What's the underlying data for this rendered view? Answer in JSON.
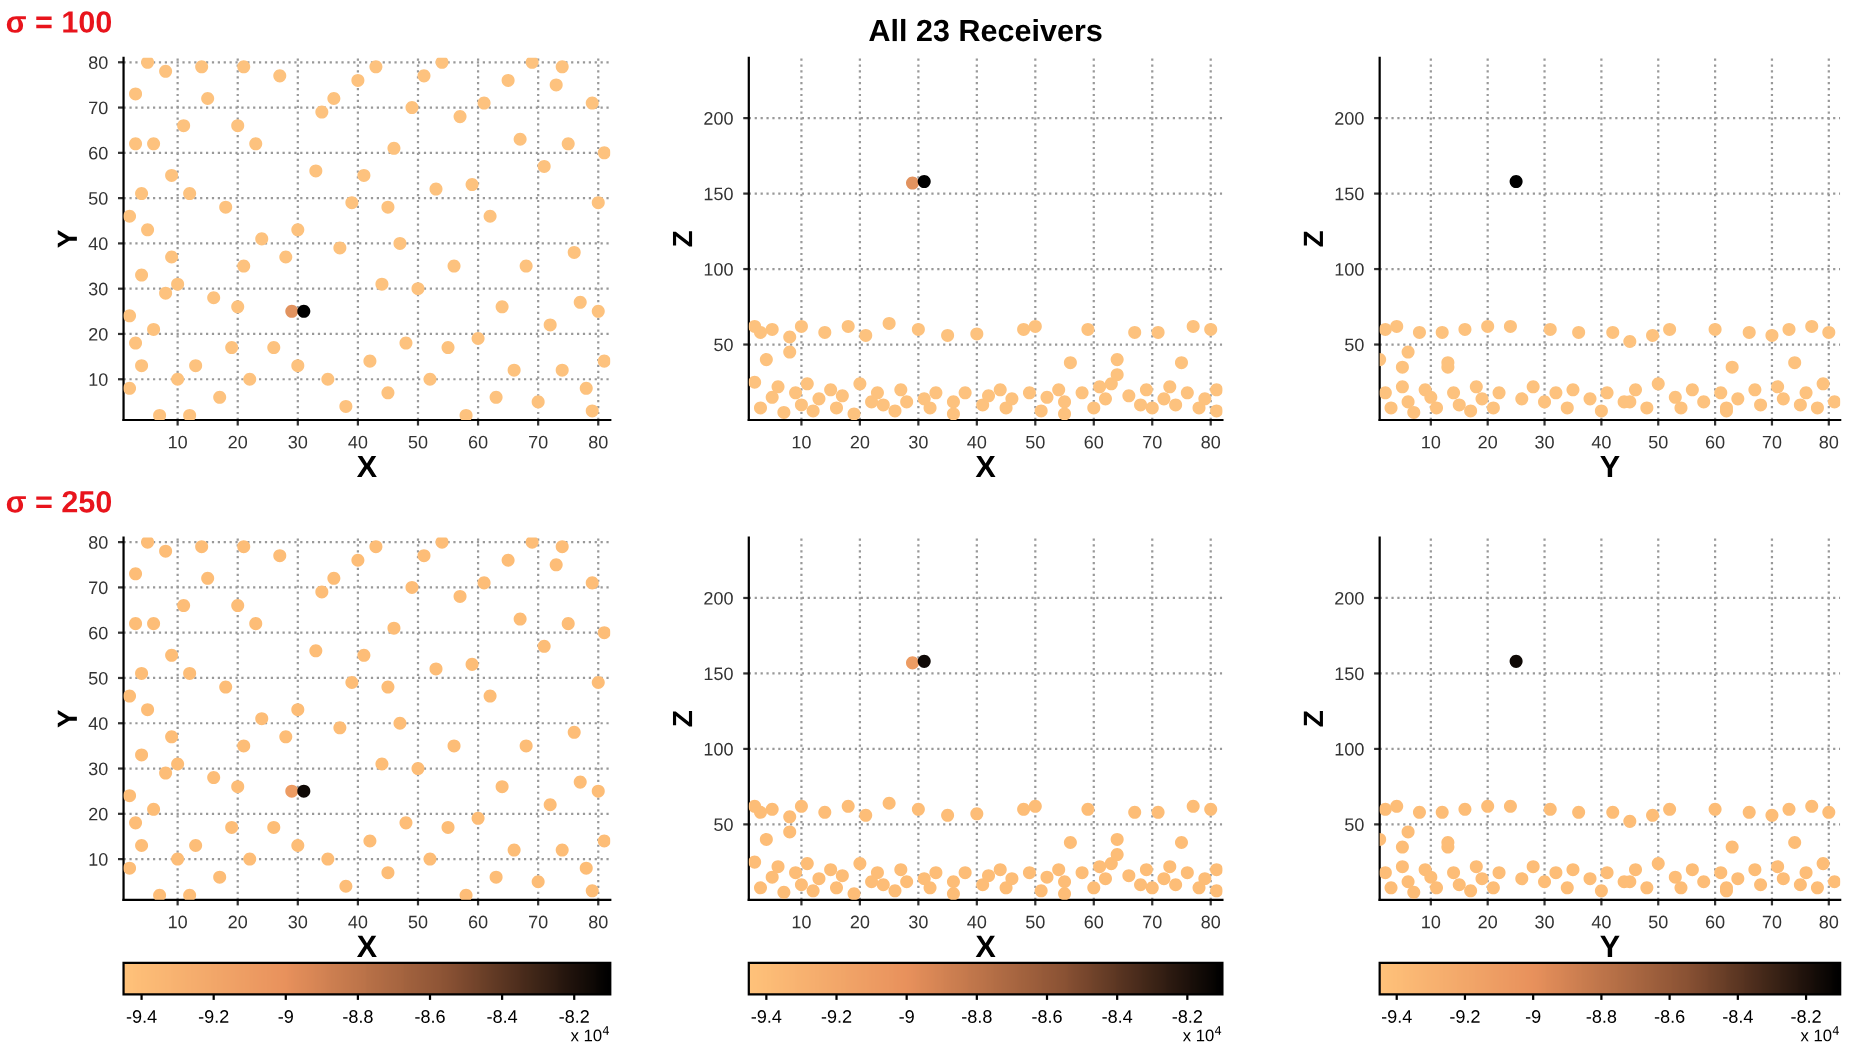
{
  "chart_data": [
    {
      "type": "scatter",
      "subtitle": "σ = 100",
      "xlabel": "X",
      "ylabel": "Y",
      "xlim": [
        1,
        82
      ],
      "ylim": [
        1,
        81
      ],
      "xticks": [
        10,
        20,
        30,
        40,
        50,
        60,
        70,
        80
      ],
      "yticks": [
        10,
        20,
        30,
        40,
        50,
        60,
        70,
        80
      ],
      "grid": true,
      "marker": "circle",
      "series": [
        {
          "color": "#fdc27e",
          "x": [
            2,
            2,
            2,
            3,
            3,
            3,
            4,
            4,
            4,
            5,
            5,
            6,
            6,
            7,
            8,
            8,
            9,
            9,
            10,
            10,
            11,
            12,
            12,
            13,
            14,
            15,
            16,
            17,
            18,
            19,
            20,
            20,
            21,
            21,
            22,
            23,
            24,
            26,
            27,
            28,
            30,
            30,
            33,
            34,
            35,
            36,
            37,
            38,
            39,
            40,
            41,
            42,
            43,
            44,
            45,
            45,
            46,
            47,
            48,
            49,
            50,
            51,
            52,
            53,
            54,
            55,
            56,
            57,
            58,
            59,
            60,
            61,
            62,
            63,
            64,
            65,
            66,
            67,
            68,
            69,
            70,
            71,
            72,
            73,
            74,
            75,
            76,
            77,
            78,
            79,
            80,
            80,
            81,
            81,
            79,
            74
          ],
          "values": [
            46,
            24,
            8,
            73,
            62,
            18,
            51,
            33,
            13,
            80,
            43,
            62,
            21,
            2,
            78,
            29,
            37,
            55,
            10,
            31,
            66,
            51,
            2,
            13,
            79,
            72,
            28,
            6,
            48,
            17,
            66,
            26,
            79,
            35,
            10,
            62,
            41,
            17,
            77,
            37,
            43,
            13,
            56,
            69,
            10,
            72,
            39,
            4,
            49,
            76,
            55,
            14,
            79,
            31,
            48,
            7,
            61,
            40,
            18,
            70,
            30,
            77,
            10,
            52,
            80,
            17,
            35,
            68,
            2,
            53,
            19,
            71,
            46,
            6,
            26,
            76,
            12,
            63,
            35,
            80,
            5,
            57,
            22,
            75,
            12,
            62,
            38,
            27,
            8,
            71,
            49,
            25,
            14,
            60,
            3,
            79
          ]
        },
        {
          "color": "#e2935f",
          "x": [
            29
          ],
          "values": [
            25
          ]
        },
        {
          "color": "#000000",
          "x": [
            31
          ],
          "values": [
            25
          ]
        }
      ]
    },
    {
      "type": "scatter",
      "title": "All 23 Receivers",
      "xlabel": "X",
      "ylabel": "Z",
      "xlim": [
        1,
        82
      ],
      "ylim": [
        0,
        240
      ],
      "xticks": [
        10,
        20,
        30,
        40,
        50,
        60,
        70,
        80
      ],
      "yticks": [
        50,
        100,
        150,
        200
      ],
      "grid": true,
      "marker": "circle",
      "series": [
        {
          "color": "#fdc27e",
          "x": [
            2,
            2,
            3,
            3,
            4,
            5,
            5,
            6,
            7,
            8,
            9,
            10,
            10,
            11,
            12,
            13,
            14,
            15,
            16,
            17,
            18,
            19,
            20,
            21,
            22,
            23,
            24,
            25,
            26,
            27,
            28,
            30,
            31,
            32,
            33,
            35,
            36,
            38,
            40,
            41,
            42,
            44,
            45,
            46,
            48,
            49,
            50,
            51,
            52,
            54,
            55,
            56,
            58,
            59,
            60,
            61,
            62,
            63,
            64,
            66,
            67,
            68,
            69,
            70,
            71,
            72,
            73,
            74,
            75,
            76,
            77,
            78,
            79,
            80,
            81,
            81,
            8,
            36,
            55,
            64
          ],
          "values": [
            62,
            25,
            8,
            58,
            40,
            15,
            60,
            22,
            5,
            55,
            18,
            10,
            62,
            24,
            6,
            14,
            58,
            20,
            8,
            16,
            62,
            4,
            24,
            56,
            12,
            18,
            10,
            64,
            6,
            20,
            12,
            60,
            14,
            8,
            18,
            56,
            12,
            18,
            57,
            10,
            16,
            20,
            8,
            14,
            60,
            18,
            62,
            6,
            15,
            20,
            12,
            38,
            18,
            60,
            8,
            22,
            14,
            24,
            40,
            16,
            58,
            10,
            20,
            8,
            58,
            14,
            22,
            10,
            38,
            18,
            62,
            8,
            14,
            60,
            6,
            20,
            45,
            4,
            4,
            30
          ]
        },
        {
          "color": "#e2935f",
          "x": [
            29
          ],
          "values": [
            157
          ]
        },
        {
          "color": "#000000",
          "x": [
            31
          ],
          "values": [
            158
          ]
        }
      ]
    },
    {
      "type": "scatter",
      "xlabel": "Y",
      "ylabel": "Z",
      "xlim": [
        1,
        82
      ],
      "ylim": [
        0,
        240
      ],
      "xticks": [
        10,
        20,
        30,
        40,
        50,
        60,
        70,
        80
      ],
      "yticks": [
        50,
        100,
        150,
        200
      ],
      "grid": true,
      "marker": "circle",
      "series": [
        {
          "color": "#fdc27e",
          "x": [
            1,
            2,
            2,
            3,
            4,
            5,
            6,
            6,
            7,
            8,
            9,
            10,
            11,
            12,
            13,
            14,
            15,
            16,
            17,
            18,
            19,
            20,
            21,
            22,
            24,
            26,
            28,
            30,
            31,
            32,
            34,
            35,
            36,
            38,
            40,
            41,
            42,
            44,
            45,
            46,
            48,
            49,
            50,
            52,
            53,
            54,
            56,
            58,
            60,
            61,
            62,
            63,
            64,
            66,
            67,
            68,
            70,
            71,
            72,
            73,
            74,
            75,
            76,
            77,
            78,
            79,
            80,
            81,
            5,
            13,
            45,
            62
          ],
          "values": [
            40,
            60,
            18,
            8,
            62,
            22,
            45,
            12,
            5,
            58,
            20,
            15,
            8,
            58,
            35,
            18,
            10,
            60,
            6,
            22,
            14,
            62,
            8,
            18,
            62,
            14,
            22,
            12,
            60,
            18,
            8,
            20,
            58,
            14,
            6,
            18,
            58,
            12,
            52,
            20,
            8,
            56,
            24,
            60,
            15,
            8,
            20,
            12,
            60,
            18,
            8,
            35,
            14,
            58,
            20,
            10,
            56,
            22,
            14,
            60,
            38,
            10,
            18,
            62,
            8,
            24,
            58,
            12,
            35,
            38,
            12,
            6
          ]
        },
        {
          "color": "#000000",
          "x": [
            25
          ],
          "values": [
            158
          ]
        }
      ]
    },
    {
      "type": "scatter",
      "subtitle": "σ = 250",
      "xlabel": "X",
      "ylabel": "Y",
      "xlim": [
        1,
        82
      ],
      "ylim": [
        1,
        81
      ],
      "xticks": [
        10,
        20,
        30,
        40,
        50,
        60,
        70,
        80
      ],
      "yticks": [
        10,
        20,
        30,
        40,
        50,
        60,
        70,
        80
      ],
      "grid": true,
      "marker": "circle",
      "clim": [
        -9.45,
        -8.1
      ],
      "cticks": [
        -9.4,
        -9.2,
        -9,
        -8.8,
        -8.6,
        -8.4,
        -8.2
      ],
      "annotations": [
        "x 10$^{4}$"
      ],
      "series": [
        {
          "x": [
            2,
            2,
            2,
            3,
            3,
            3,
            4,
            4,
            4,
            5,
            5,
            6,
            6,
            7,
            8,
            8,
            9,
            9,
            10,
            10,
            11,
            12,
            12,
            13,
            14,
            15,
            16,
            17,
            18,
            19,
            20,
            20,
            21,
            21,
            22,
            23,
            24,
            26,
            27,
            28,
            30,
            30,
            33,
            34,
            35,
            36,
            37,
            38,
            39,
            40,
            41,
            42,
            43,
            44,
            45,
            45,
            46,
            47,
            48,
            49,
            50,
            51,
            52,
            53,
            54,
            55,
            56,
            57,
            58,
            59,
            60,
            61,
            62,
            63,
            64,
            65,
            66,
            67,
            68,
            69,
            70,
            71,
            72,
            73,
            74,
            75,
            76,
            77,
            78,
            79,
            80,
            80,
            81,
            81,
            79,
            74,
            29,
            31
          ],
          "values": [
            46,
            24,
            8,
            73,
            62,
            18,
            51,
            33,
            13,
            80,
            43,
            62,
            21,
            2,
            78,
            29,
            37,
            55,
            10,
            31,
            66,
            51,
            2,
            13,
            79,
            72,
            28,
            6,
            48,
            17,
            66,
            26,
            79,
            35,
            10,
            62,
            41,
            17,
            77,
            37,
            43,
            13,
            56,
            69,
            10,
            72,
            39,
            4,
            49,
            76,
            55,
            14,
            79,
            31,
            48,
            7,
            61,
            40,
            18,
            70,
            30,
            77,
            10,
            52,
            80,
            17,
            35,
            68,
            2,
            53,
            19,
            71,
            46,
            6,
            26,
            76,
            12,
            63,
            35,
            80,
            5,
            57,
            22,
            75,
            12,
            62,
            38,
            27,
            8,
            71,
            49,
            25,
            14,
            60,
            3,
            79,
            25,
            25
          ],
          "cvalues": [
            -9.4,
            -9.4,
            -9.4,
            -9.4,
            -9.4,
            -9.4,
            -9.4,
            -9.4,
            -9.4,
            -9.4,
            -9.4,
            -9.4,
            -9.4,
            -9.4,
            -9.4,
            -9.4,
            -9.4,
            -9.4,
            -9.4,
            -9.4,
            -9.4,
            -9.4,
            -9.4,
            -9.4,
            -9.4,
            -9.4,
            -9.4,
            -9.4,
            -9.4,
            -9.4,
            -9.4,
            -9.4,
            -9.4,
            -9.4,
            -9.4,
            -9.4,
            -9.4,
            -9.4,
            -9.4,
            -9.4,
            -9.4,
            -9.4,
            -9.4,
            -9.4,
            -9.4,
            -9.4,
            -9.4,
            -9.4,
            -9.4,
            -9.4,
            -9.4,
            -9.4,
            -9.4,
            -9.4,
            -9.4,
            -9.4,
            -9.4,
            -9.4,
            -9.4,
            -9.4,
            -9.4,
            -9.4,
            -9.4,
            -9.4,
            -9.4,
            -9.4,
            -9.4,
            -9.4,
            -9.4,
            -9.4,
            -9.4,
            -9.4,
            -9.4,
            -9.4,
            -9.4,
            -9.4,
            -9.4,
            -9.4,
            -9.4,
            -9.4,
            -9.4,
            -9.4,
            -9.4,
            -9.4,
            -9.4,
            -9.4,
            -9.4,
            -9.4,
            -9.4,
            -9.4,
            -9.4,
            -9.4,
            -9.4,
            -9.4,
            -9.4,
            -9.4,
            -9.1,
            -8.15
          ]
        }
      ]
    },
    {
      "type": "scatter",
      "xlabel": "X",
      "ylabel": "Z",
      "xlim": [
        1,
        82
      ],
      "ylim": [
        0,
        240
      ],
      "xticks": [
        10,
        20,
        30,
        40,
        50,
        60,
        70,
        80
      ],
      "yticks": [
        50,
        100,
        150,
        200
      ],
      "grid": true,
      "marker": "circle",
      "clim": [
        -9.45,
        -8.1
      ],
      "cticks": [
        -9.4,
        -9.2,
        -9,
        -8.8,
        -8.6,
        -8.4,
        -8.2
      ],
      "annotations": [
        "x 10$^{4}$"
      ],
      "series": [
        {
          "x": [
            2,
            2,
            3,
            3,
            4,
            5,
            5,
            6,
            7,
            8,
            9,
            10,
            10,
            11,
            12,
            13,
            14,
            15,
            16,
            17,
            18,
            19,
            20,
            21,
            22,
            23,
            24,
            25,
            26,
            27,
            28,
            30,
            31,
            32,
            33,
            35,
            36,
            38,
            40,
            41,
            42,
            44,
            45,
            46,
            48,
            49,
            50,
            51,
            52,
            54,
            55,
            56,
            58,
            59,
            60,
            61,
            62,
            63,
            64,
            66,
            67,
            68,
            69,
            70,
            71,
            72,
            73,
            74,
            75,
            76,
            77,
            78,
            79,
            80,
            81,
            81,
            8,
            36,
            55,
            64,
            29,
            31
          ],
          "values": [
            62,
            25,
            8,
            58,
            40,
            15,
            60,
            22,
            5,
            55,
            18,
            10,
            62,
            24,
            6,
            14,
            58,
            20,
            8,
            16,
            62,
            4,
            24,
            56,
            12,
            18,
            10,
            64,
            6,
            20,
            12,
            60,
            14,
            8,
            18,
            56,
            12,
            18,
            57,
            10,
            16,
            20,
            8,
            14,
            60,
            18,
            62,
            6,
            15,
            20,
            12,
            38,
            18,
            60,
            8,
            22,
            14,
            24,
            40,
            16,
            58,
            10,
            20,
            8,
            58,
            14,
            22,
            10,
            38,
            18,
            62,
            8,
            14,
            60,
            6,
            20,
            45,
            4,
            4,
            30,
            157,
            158
          ],
          "cvalues": [
            -9.4,
            -9.4,
            -9.4,
            -9.4,
            -9.4,
            -9.4,
            -9.4,
            -9.4,
            -9.4,
            -9.4,
            -9.4,
            -9.4,
            -9.4,
            -9.4,
            -9.4,
            -9.4,
            -9.4,
            -9.4,
            -9.4,
            -9.4,
            -9.4,
            -9.4,
            -9.4,
            -9.4,
            -9.4,
            -9.4,
            -9.4,
            -9.4,
            -9.4,
            -9.4,
            -9.4,
            -9.4,
            -9.4,
            -9.4,
            -9.4,
            -9.4,
            -9.4,
            -9.4,
            -9.4,
            -9.4,
            -9.4,
            -9.4,
            -9.4,
            -9.4,
            -9.4,
            -9.4,
            -9.4,
            -9.4,
            -9.4,
            -9.4,
            -9.4,
            -9.4,
            -9.4,
            -9.4,
            -9.4,
            -9.4,
            -9.4,
            -9.4,
            -9.4,
            -9.4,
            -9.4,
            -9.4,
            -9.4,
            -9.4,
            -9.4,
            -9.4,
            -9.4,
            -9.4,
            -9.4,
            -9.4,
            -9.4,
            -9.4,
            -9.4,
            -9.4,
            -9.4,
            -9.4,
            -9.4,
            -9.4,
            -9.4,
            -9.4,
            -9.1,
            -8.15
          ]
        }
      ]
    },
    {
      "type": "scatter",
      "xlabel": "Y",
      "ylabel": "Z",
      "xlim": [
        1,
        82
      ],
      "ylim": [
        0,
        240
      ],
      "xticks": [
        10,
        20,
        30,
        40,
        50,
        60,
        70,
        80
      ],
      "yticks": [
        50,
        100,
        150,
        200
      ],
      "grid": true,
      "marker": "circle",
      "clim": [
        -9.45,
        -8.1
      ],
      "cticks": [
        -9.4,
        -9.2,
        -9,
        -8.8,
        -8.6,
        -8.4,
        -8.2
      ],
      "annotations": [
        "x 10$^{4}$"
      ],
      "series": [
        {
          "x": [
            1,
            2,
            2,
            3,
            4,
            5,
            6,
            6,
            7,
            8,
            9,
            10,
            11,
            12,
            13,
            14,
            15,
            16,
            17,
            18,
            19,
            20,
            21,
            22,
            24,
            26,
            28,
            30,
            31,
            32,
            34,
            35,
            36,
            38,
            40,
            41,
            42,
            44,
            45,
            46,
            48,
            49,
            50,
            52,
            53,
            54,
            56,
            58,
            60,
            61,
            62,
            63,
            64,
            66,
            67,
            68,
            70,
            71,
            72,
            73,
            74,
            75,
            76,
            77,
            78,
            79,
            80,
            81,
            5,
            13,
            45,
            62,
            25
          ],
          "values": [
            40,
            60,
            18,
            8,
            62,
            22,
            45,
            12,
            5,
            58,
            20,
            15,
            8,
            58,
            35,
            18,
            10,
            60,
            6,
            22,
            14,
            62,
            8,
            18,
            62,
            14,
            22,
            12,
            60,
            18,
            8,
            20,
            58,
            14,
            6,
            18,
            58,
            12,
            52,
            20,
            8,
            56,
            24,
            60,
            15,
            8,
            20,
            12,
            60,
            18,
            8,
            35,
            14,
            58,
            20,
            10,
            56,
            22,
            14,
            60,
            38,
            10,
            18,
            62,
            8,
            24,
            58,
            12,
            35,
            38,
            12,
            6,
            158
          ],
          "cvalues": [
            -9.4,
            -9.4,
            -9.4,
            -9.4,
            -9.4,
            -9.4,
            -9.4,
            -9.4,
            -9.4,
            -9.4,
            -9.4,
            -9.4,
            -9.4,
            -9.4,
            -9.4,
            -9.4,
            -9.4,
            -9.4,
            -9.4,
            -9.4,
            -9.4,
            -9.4,
            -9.4,
            -9.4,
            -9.4,
            -9.4,
            -9.4,
            -9.4,
            -9.4,
            -9.4,
            -9.4,
            -9.4,
            -9.4,
            -9.4,
            -9.4,
            -9.4,
            -9.4,
            -9.4,
            -9.4,
            -9.4,
            -9.4,
            -9.4,
            -9.4,
            -9.4,
            -9.4,
            -9.4,
            -9.4,
            -9.4,
            -9.4,
            -9.4,
            -9.4,
            -9.4,
            -9.4,
            -9.4,
            -9.4,
            -9.4,
            -9.4,
            -9.4,
            -9.4,
            -9.4,
            -9.4,
            -9.4,
            -9.4,
            -9.4,
            -9.4,
            -9.4,
            -9.4,
            -9.4,
            -9.4,
            -9.4,
            -9.4,
            -9.4,
            -8.15
          ]
        }
      ]
    }
  ]
}
